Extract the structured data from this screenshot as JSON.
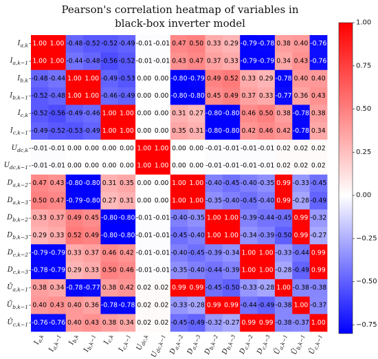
{
  "chart_data": {
    "type": "heatmap",
    "title": [
      "Pearson's correlation heatmap of variables in",
      "black-box inverter model"
    ],
    "row_labels": [
      "I_{a,k}",
      "I_{a,k-1}",
      "I_{b,k}",
      "I_{b,k-1}",
      "I_{c,k}",
      "I_{c,k-1}",
      "U_{dc,k}",
      "U_{dc,k-1}",
      "D_{a,k-2}",
      "D_{a,k-3}",
      "D_{b,k-2}",
      "D_{b,k-3}",
      "D_{c,k-2}",
      "D_{c,k-3}",
      "Ū_{a,k-1}",
      "Ū_{b,k-1}",
      "Ū_{c,k-1}"
    ],
    "col_labels": [
      "I_{a,k}",
      "I_{a,k-1}",
      "I_{b,k}",
      "I_{b,k-1}",
      "I_{c,k}",
      "I_{c,k-1}",
      "U_{dc,k}",
      "U_{dc,k-1}",
      "D_{a,k-2}",
      "D_{a,k-3}",
      "D_{b,k-2}",
      "D_{b,k-3}",
      "D_{c,k-2}",
      "D_{c,k-3}",
      "Ū_{a,k-1}",
      "Ū_{b,k-1}",
      "Ū_{c,k-1}"
    ],
    "values": [
      [
        "1.00",
        "1.00",
        "-0.48",
        "-0.52",
        "-0.52",
        "-0.49",
        "-0.01",
        "-0.01",
        "0.47",
        "0.50",
        "0.33",
        "0.29",
        "-0.79",
        "-0.78",
        "0.38",
        "0.40",
        "-0.76"
      ],
      [
        "1.00",
        "1.00",
        "-0.44",
        "-0.48",
        "-0.56",
        "-0.52",
        "-0.01",
        "-0.01",
        "0.43",
        "0.47",
        "0.37",
        "0.33",
        "-0.79",
        "-0.79",
        "0.34",
        "0.43",
        "-0.76"
      ],
      [
        "-0.48",
        "-0.44",
        "1.00",
        "1.00",
        "-0.49",
        "-0.53",
        "0.00",
        "0.00",
        "-0.80",
        "-0.79",
        "0.49",
        "0.52",
        "0.33",
        "0.29",
        "-0.78",
        "0.40",
        "0.40"
      ],
      [
        "-0.52",
        "-0.48",
        "1.00",
        "1.00",
        "-0.46",
        "-0.49",
        "0.00",
        "0.00",
        "-0.80",
        "-0.80",
        "0.45",
        "0.49",
        "0.37",
        "0.33",
        "-0.77",
        "0.36",
        "0.43"
      ],
      [
        "-0.52",
        "-0.56",
        "-0.49",
        "-0.46",
        "1.00",
        "1.00",
        "0.00",
        "0.00",
        "0.31",
        "0.27",
        "-0.80",
        "-0.80",
        "0.46",
        "0.50",
        "0.38",
        "-0.78",
        "0.38"
      ],
      [
        "-0.49",
        "-0.52",
        "-0.53",
        "-0.49",
        "1.00",
        "1.00",
        "0.00",
        "0.00",
        "0.35",
        "0.31",
        "-0.80",
        "-0.80",
        "0.42",
        "0.46",
        "0.42",
        "-0.78",
        "0.34"
      ],
      [
        "-0.01",
        "-0.01",
        "0.00",
        "0.00",
        "0.00",
        "0.00",
        "1.00",
        "1.00",
        "0.00",
        "0.00",
        "-0.01",
        "-0.01",
        "-0.01",
        "-0.01",
        "0.02",
        "0.02",
        "0.02"
      ],
      [
        "-0.01",
        "-0.01",
        "0.00",
        "0.00",
        "0.00",
        "0.00",
        "1.00",
        "1.00",
        "0.00",
        "0.00",
        "-0.01",
        "-0.01",
        "-0.01",
        "-0.01",
        "0.02",
        "0.02",
        "0.02"
      ],
      [
        "0.47",
        "0.43",
        "-0.80",
        "-0.80",
        "0.31",
        "0.35",
        "0.00",
        "0.00",
        "1.00",
        "1.00",
        "-0.40",
        "-0.45",
        "-0.40",
        "-0.35",
        "0.99",
        "-0.33",
        "-0.45"
      ],
      [
        "0.50",
        "0.47",
        "-0.79",
        "-0.80",
        "0.27",
        "0.31",
        "0.00",
        "0.00",
        "1.00",
        "1.00",
        "-0.35",
        "-0.40",
        "-0.45",
        "-0.40",
        "0.99",
        "-0.28",
        "-0.49"
      ],
      [
        "0.33",
        "0.37",
        "0.49",
        "0.45",
        "-0.80",
        "-0.80",
        "-0.01",
        "-0.01",
        "-0.40",
        "-0.35",
        "1.00",
        "1.00",
        "-0.39",
        "-0.44",
        "-0.45",
        "0.99",
        "-0.32"
      ],
      [
        "0.29",
        "0.33",
        "0.52",
        "0.49",
        "-0.80",
        "-0.80",
        "-0.01",
        "-0.01",
        "-0.45",
        "-0.40",
        "1.00",
        "1.00",
        "-0.34",
        "-0.39",
        "-0.50",
        "0.99",
        "-0.27"
      ],
      [
        "-0.79",
        "-0.79",
        "0.33",
        "0.37",
        "0.46",
        "0.42",
        "-0.01",
        "-0.01",
        "-0.40",
        "-0.45",
        "-0.39",
        "-0.34",
        "1.00",
        "1.00",
        "-0.33",
        "-0.44",
        "0.99"
      ],
      [
        "-0.78",
        "-0.79",
        "0.29",
        "0.33",
        "0.50",
        "0.46",
        "-0.01",
        "-0.01",
        "-0.35",
        "-0.40",
        "-0.44",
        "-0.39",
        "1.00",
        "1.00",
        "-0.28",
        "-0.49",
        "0.99"
      ],
      [
        "0.38",
        "0.34",
        "-0.78",
        "-0.77",
        "0.38",
        "0.42",
        "0.02",
        "0.02",
        "0.99",
        "0.99",
        "-0.45",
        "-0.50",
        "-0.33",
        "-0.28",
        "1.00",
        "-0.38",
        "-0.38"
      ],
      [
        "0.40",
        "0.43",
        "0.40",
        "0.36",
        "-0.78",
        "-0.78",
        "0.02",
        "0.02",
        "-0.33",
        "-0.28",
        "0.99",
        "0.99",
        "-0.44",
        "-0.49",
        "-0.38",
        "1.00",
        "-0.37"
      ],
      [
        "-0.76",
        "-0.76",
        "0.40",
        "0.43",
        "0.38",
        "0.34",
        "0.02",
        "0.02",
        "-0.45",
        "-0.49",
        "-0.32",
        "-0.27",
        "0.99",
        "0.99",
        "-0.38",
        "-0.37",
        "1.00"
      ]
    ],
    "colormap": "bwr",
    "vmin": -0.8,
    "vmax": 1.0,
    "colorbar_ticks": [
      "1.00",
      "0.75",
      "0.50",
      "0.25",
      "0.00",
      "−0.25",
      "−0.50",
      "−0.75"
    ],
    "colors": {
      "negative": "#0000ff",
      "zero": "#ffffff",
      "positive": "#ff0000"
    }
  }
}
